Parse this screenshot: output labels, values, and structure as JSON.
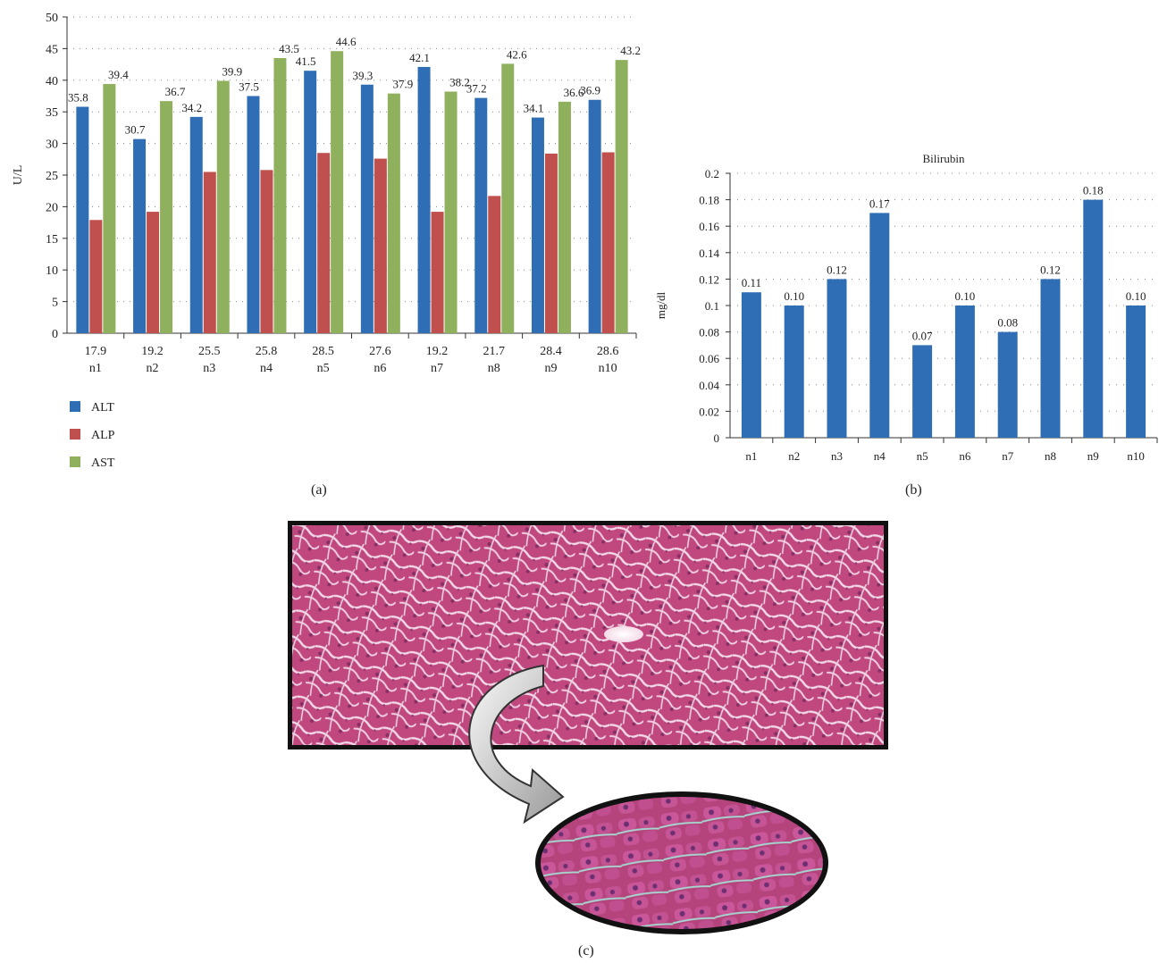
{
  "panels": {
    "a": "(a)",
    "b": "(b)",
    "c": "(c)"
  },
  "colors": {
    "ALT": "#2f6eb5",
    "ALP": "#c0504d",
    "AST": "#8fb05c",
    "grid": "#888888",
    "axis": "#333333"
  },
  "chart_data": [
    {
      "type": "bar",
      "title": "",
      "ylabel": "U/L",
      "xlabel": "",
      "ylim": [
        0,
        50
      ],
      "yticks": [
        0,
        5,
        10,
        15,
        20,
        25,
        30,
        35,
        40,
        45,
        50
      ],
      "grid": true,
      "legend": "bottom-left",
      "categories": [
        "n1",
        "n2",
        "n3",
        "n4",
        "n5",
        "n6",
        "n7",
        "n8",
        "n9",
        "n10"
      ],
      "series": [
        {
          "name": "ALT",
          "values": [
            35.8,
            30.7,
            34.2,
            37.5,
            41.5,
            39.3,
            42.1,
            37.2,
            34.1,
            36.9
          ]
        },
        {
          "name": "ALP",
          "values": [
            17.9,
            19.2,
            25.5,
            25.8,
            28.5,
            27.6,
            19.2,
            21.7,
            28.4,
            28.6
          ]
        },
        {
          "name": "AST",
          "values": [
            39.4,
            36.7,
            39.9,
            43.5,
            44.6,
            37.9,
            38.2,
            42.6,
            36.6,
            43.2
          ]
        }
      ],
      "data_labels": {
        "ALT": [
          "35.8",
          "30.7",
          "34.2",
          "37.5",
          "41.5",
          "39.3",
          "42.1",
          "37.2",
          "34.1",
          "36.9"
        ],
        "ALP": [
          "17.9",
          "19.2",
          "25.5",
          "25.8",
          "28.5",
          "27.6",
          "19.2",
          "21.7",
          "28.4",
          "28.6"
        ],
        "AST": [
          "39.4",
          "36.7",
          "39.9",
          "43.5",
          "44.6",
          "37.9",
          "38.2",
          "42.6",
          "36.6",
          "43.2"
        ]
      },
      "ytick_labels": [
        "0",
        "5",
        "10",
        "15",
        "20",
        "25",
        "30",
        "35",
        "40",
        "45",
        "50"
      ]
    },
    {
      "type": "bar",
      "title": "Bilirubin",
      "ylabel": "mg/dl",
      "xlabel": "",
      "ylim": [
        0,
        0.2
      ],
      "yticks": [
        0,
        0.02,
        0.04,
        0.06,
        0.08,
        0.1,
        0.12,
        0.14,
        0.16,
        0.18,
        0.2
      ],
      "ytick_labels": [
        "0",
        "0.02",
        "0.04",
        "0.06",
        "0.08",
        "0.1",
        "0.12",
        "0.14",
        "0.16",
        "0.18",
        "0.2"
      ],
      "grid": true,
      "categories": [
        "n1",
        "n2",
        "n3",
        "n4",
        "n5",
        "n6",
        "n7",
        "n8",
        "n9",
        "n10"
      ],
      "series": [
        {
          "values": [
            0.11,
            0.1,
            0.12,
            0.17,
            0.07,
            0.1,
            0.08,
            0.12,
            0.18,
            0.1
          ]
        }
      ],
      "data_labels": [
        "0.11",
        "0.10",
        "0.12",
        "0.17",
        "0.07",
        "0.10",
        "0.08",
        "0.12",
        "0.18",
        "0.10"
      ]
    }
  ]
}
